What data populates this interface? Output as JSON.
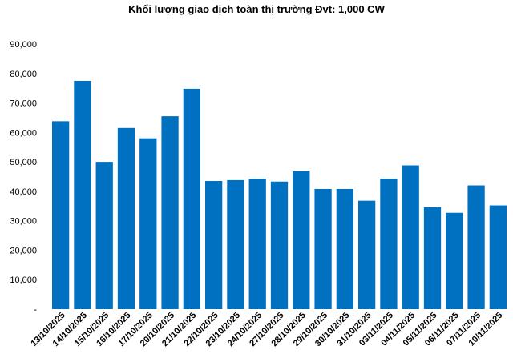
{
  "chart_data": {
    "type": "bar",
    "title": "Khối lượng giao dịch toàn thị trường Đvt: 1,000 CW",
    "xlabel": "",
    "ylabel": "",
    "ylim": [
      0,
      90000
    ],
    "yticks": [
      0,
      10000,
      20000,
      30000,
      40000,
      50000,
      60000,
      70000,
      80000,
      90000
    ],
    "ytick_labels": [
      "-",
      "10,000",
      "20,000",
      "30,000",
      "40,000",
      "50,000",
      "60,000",
      "70,000",
      "80,000",
      "90,000"
    ],
    "grid": false,
    "legend": "none",
    "bar_color": "#0070C0",
    "categories": [
      "13/10/2025",
      "14/10/2025",
      "15/10/2025",
      "16/10/2025",
      "17/10/2025",
      "20/10/2025",
      "21/10/2025",
      "22/10/2025",
      "23/10/2025",
      "24/10/2025",
      "27/10/2025",
      "28/10/2025",
      "29/10/2025",
      "30/10/2025",
      "31/10/2025",
      "03/11/2025",
      "04/11/2025",
      "05/11/2025",
      "06/11/2025",
      "07/11/2025",
      "10/11/2025"
    ],
    "values": [
      63800,
      77500,
      50000,
      61500,
      58000,
      65500,
      74800,
      43500,
      43800,
      44300,
      43300,
      46800,
      40800,
      40800,
      36800,
      44300,
      48800,
      34600,
      32700,
      42000,
      35200
    ]
  }
}
